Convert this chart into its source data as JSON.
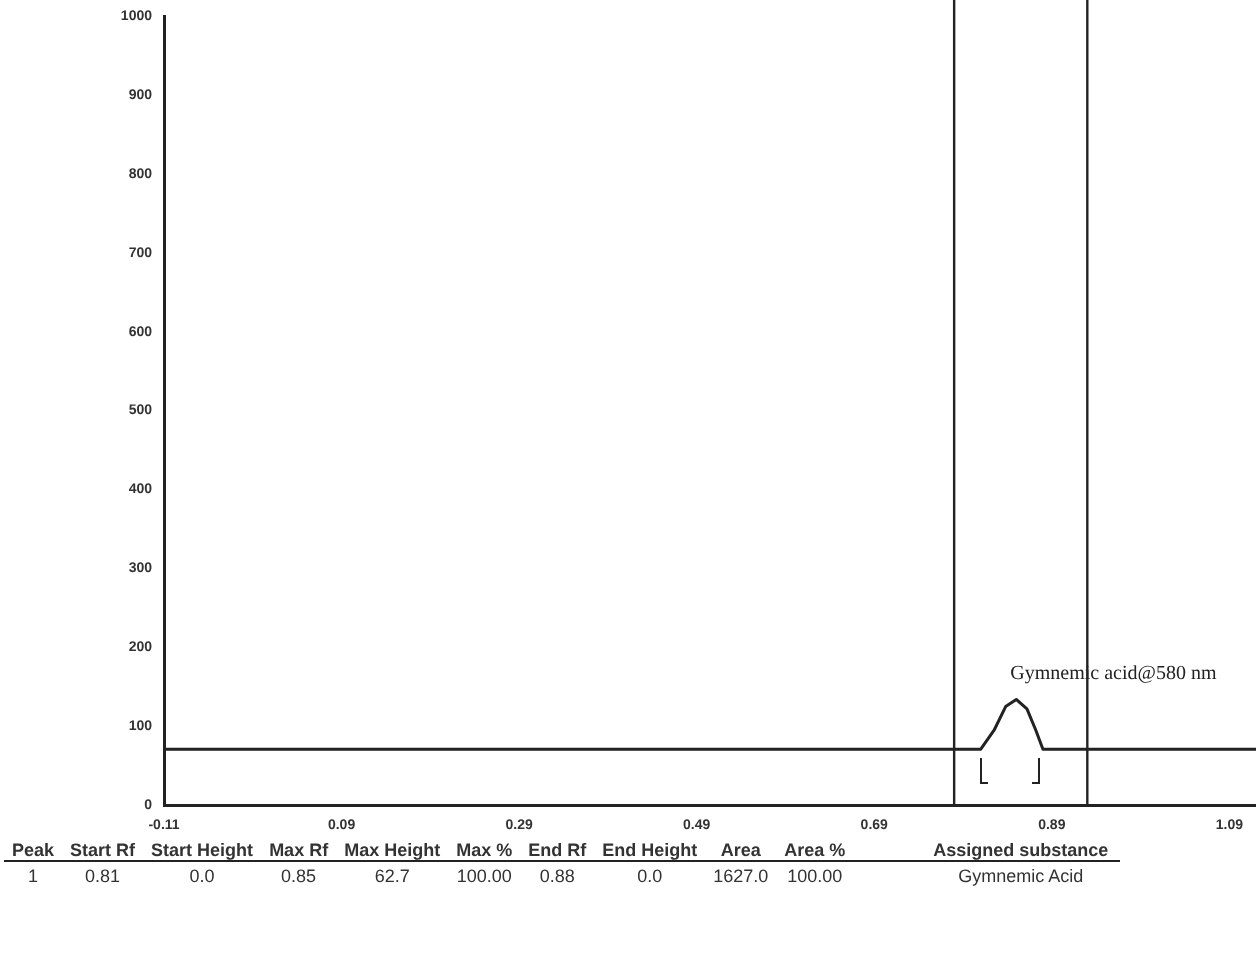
{
  "chart_data": {
    "type": "line",
    "x": [
      -0.11,
      0.79,
      0.81,
      0.825,
      0.838,
      0.85,
      0.862,
      0.872,
      0.88,
      0.92,
      1.12
    ],
    "series": [
      {
        "color": "#222222",
        "values": [
          71,
          71,
          71,
          95,
          125,
          134,
          122,
          95,
          71,
          71,
          71
        ]
      }
    ],
    "xlim": [
      -0.11,
      1.12
    ],
    "xticks": [
      -0.11,
      0.09,
      0.29,
      0.49,
      0.69,
      0.89,
      1.09
    ],
    "ylim": [
      0,
      1000
    ],
    "yticks": [
      0,
      100,
      200,
      300,
      400,
      500,
      600,
      700,
      800,
      900,
      1000
    ],
    "grid": false,
    "legend": false,
    "marker": "none",
    "line_style": "solid",
    "ref_lines": [
      {
        "axis": "x",
        "value": 0.78,
        "color": "#222222"
      },
      {
        "axis": "x",
        "value": 0.93,
        "color": "#222222"
      }
    ],
    "annotations": [
      {
        "text": "Gymnemic acid@580 nm",
        "x": 0.85,
        "y": 134
      },
      "Peak",
      "Start Rf",
      "Start Height",
      "Max Rf",
      "Max Height",
      "Max %",
      "End Rf",
      "End Height",
      "Area",
      "Area %",
      "Assigned substance",
      "1",
      "0.81",
      "0.0",
      "0.85",
      "62.7",
      "100.00",
      "0.88",
      "0.0",
      "1627.0",
      "100.00",
      "Gymnemic Acid"
    ]
  }
}
